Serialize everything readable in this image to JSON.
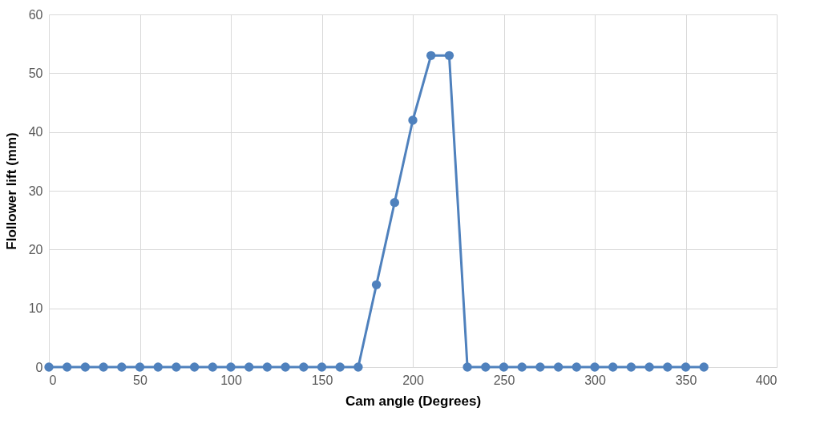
{
  "chart_data": {
    "type": "line",
    "xlabel": "Cam angle (Degrees)",
    "ylabel": "Flollower lift (mm)",
    "x": [
      0,
      10,
      20,
      30,
      40,
      50,
      60,
      70,
      80,
      90,
      100,
      110,
      120,
      130,
      140,
      150,
      160,
      170,
      180,
      190,
      200,
      210,
      220,
      230,
      240,
      250,
      260,
      270,
      280,
      290,
      300,
      310,
      320,
      330,
      340,
      350,
      360
    ],
    "series": [
      {
        "color": "#4f81bd",
        "values": [
          0,
          0,
          0,
          0,
          0,
          0,
          0,
          0,
          0,
          0,
          0,
          0,
          0,
          0,
          0,
          0,
          0,
          0,
          14,
          28,
          42,
          53,
          53,
          0,
          0,
          0,
          0,
          0,
          0,
          0,
          0,
          0,
          0,
          0,
          0,
          0,
          0
        ]
      }
    ],
    "xlim": [
      0,
      400
    ],
    "xticks": [
      0,
      50,
      100,
      150,
      200,
      250,
      300,
      350,
      400
    ],
    "ylim": [
      0,
      60
    ],
    "yticks": [
      0,
      10,
      20,
      30,
      40,
      50,
      60
    ],
    "grid": true,
    "marker": "circle",
    "line_style": "solid"
  }
}
